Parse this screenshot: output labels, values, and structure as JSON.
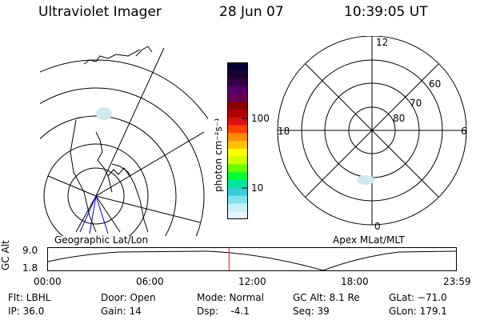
{
  "header": {
    "instrument": "Ultraviolet Imager",
    "date": "28 Jun 07",
    "time": "10:39:05 UT"
  },
  "geo_panel": {
    "label": "Geographic Lat/Lon",
    "colors": {
      "coast": "#000000",
      "grid": "#000000",
      "meridian": "#0000cc",
      "aurora": "#cfe9f0"
    }
  },
  "colorbar": {
    "unit": "photon cm⁻²s⁻¹",
    "ticks": [
      "100",
      "10"
    ],
    "colors": [
      "#000033",
      "#1a0033",
      "#330044",
      "#550066",
      "#660055",
      "#8a0000",
      "#b00000",
      "#dd1010",
      "#ff4000",
      "#ff8c00",
      "#ffc000",
      "#ffff00",
      "#ccff00",
      "#66ff00",
      "#00ff33",
      "#00e6a0",
      "#33ccdd",
      "#80e0ee",
      "#c8eef8",
      "#e6f4ff"
    ]
  },
  "apex_panel": {
    "label": "Apex MLat/MLT",
    "mlt_labels": [
      "12",
      "18",
      "6",
      "0"
    ],
    "mlat_labels": [
      "60",
      "70",
      "80"
    ],
    "colors": {
      "grid": "#000000",
      "aurora": "#cfe9f0"
    }
  },
  "altitude_plot": {
    "ylabel": "GC Alt",
    "yticks": [
      "9.0",
      "1.8"
    ],
    "xticks": [
      "00:00",
      "06:00",
      "12:00",
      "18:00",
      "23:59"
    ],
    "current_time_hours": 10.65,
    "marker_color": "#ff0000"
  },
  "status": {
    "col1": [
      "Flt: LBHL",
      "IP: 36.0"
    ],
    "col2": [
      "Door: Open",
      "Gain: 14"
    ],
    "col3": [
      "Mode: Normal",
      "Dsp:    -4.1"
    ],
    "col4": [
      "GC Alt: 8.1 Re",
      "Seq: 39"
    ],
    "col5": [
      "GLat: −71.0",
      "GLon: 179.1"
    ]
  }
}
